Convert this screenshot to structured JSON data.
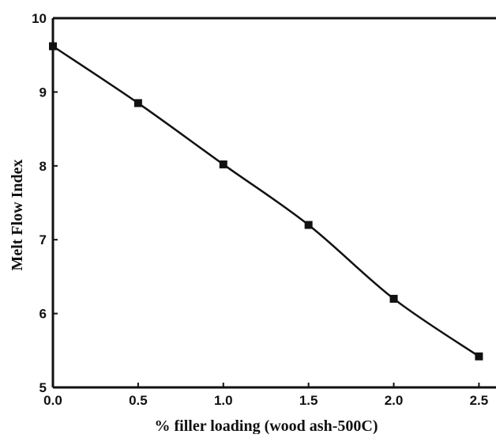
{
  "chart_data": {
    "type": "line",
    "title": "",
    "xlabel": "% filler loading (wood ash-500C)",
    "ylabel": "Melt Flow Index",
    "xlim": [
      0,
      2.6
    ],
    "ylim": [
      5,
      10
    ],
    "x_ticks": [
      "0.0",
      "0.5",
      "1.0",
      "1.5",
      "2.0",
      "2.5"
    ],
    "y_ticks": [
      "5",
      "6",
      "7",
      "8",
      "9",
      "10"
    ],
    "grid": false,
    "legend": "none",
    "marker": "square",
    "line_color": "#111111",
    "series": [
      {
        "x": [
          0.0,
          0.5,
          1.0,
          1.5,
          2.0,
          2.5
        ],
        "y": [
          9.62,
          8.85,
          8.02,
          7.2,
          6.2,
          5.42
        ]
      }
    ]
  }
}
